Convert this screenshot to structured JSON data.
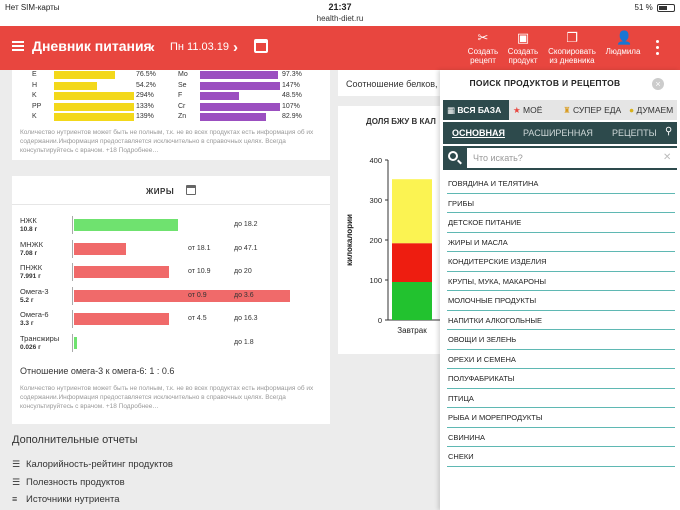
{
  "status": {
    "carrier": "Нет SIM-карты",
    "time": "21:37",
    "url": "health-diet.ru",
    "battery": "51 %"
  },
  "header": {
    "title": "Дневник питания",
    "date": "Пн 11.03.19",
    "actions": [
      {
        "label1": "Создать",
        "label2": "рецепт"
      },
      {
        "label1": "Создать",
        "label2": "продукт"
      },
      {
        "label1": "Скопировать",
        "label2": "из дневника"
      }
    ],
    "user": "Людмила"
  },
  "minerals_left": [
    {
      "name": "E",
      "value": "76.5%",
      "pct": 76.5
    },
    {
      "name": "H",
      "value": "54.2%",
      "pct": 54.2
    },
    {
      "name": "K",
      "value": "294%",
      "pct": 100
    },
    {
      "name": "PP",
      "value": "133%",
      "pct": 100
    },
    {
      "name": "K",
      "value": "139%",
      "pct": 100
    }
  ],
  "minerals_right": [
    {
      "name": "Mo",
      "value": "97.3%",
      "pct": 97.3
    },
    {
      "name": "Se",
      "value": "147%",
      "pct": 100
    },
    {
      "name": "F",
      "value": "48.5%",
      "pct": 48.5
    },
    {
      "name": "Cr",
      "value": "107%",
      "pct": 100
    },
    {
      "name": "Zn",
      "value": "82.9%",
      "pct": 82.9
    }
  ],
  "note_text": "Количество нутриентов может быть не полным, т.к. не во всех продуктах есть информация об их содержании.Информация предоставляется исключительно в справочных целях. Всегда консультируйтесь с врачом. +18 Подробнее…",
  "fats": {
    "title": "ЖИРЫ",
    "rows": [
      {
        "name": "НЖК",
        "value": "10.8 г",
        "from": "",
        "to": "до 18.2",
        "fill": 0.48,
        "color": "#6fe26f"
      },
      {
        "name": "МНЖК",
        "value": "7.08 г",
        "from": "от 18.1",
        "to": "до 47.1",
        "fill": 0.24,
        "color": "#f06a6a"
      },
      {
        "name": "ПНЖК",
        "value": "7.991 г",
        "from": "от 10.9",
        "to": "до 20",
        "fill": 0.44,
        "color": "#f06a6a"
      },
      {
        "name": "Омега-3",
        "value": "5.2 г",
        "from": "от 0.9",
        "to": "до 3.6",
        "fill": 1.0,
        "color": "#f06a6a"
      },
      {
        "name": "Омега-6",
        "value": "3.3 г",
        "from": "от 4.5",
        "to": "до 16.3",
        "fill": 0.44,
        "color": "#f06a6a"
      },
      {
        "name": "Трансжиры",
        "value": "0.026 г",
        "from": "",
        "to": "до 1.8",
        "fill": 0.015,
        "color": "#6fe26f"
      }
    ],
    "ratio": "Отношение омега-3 к омега-6: 1 : 0.6"
  },
  "extra": {
    "title": "Дополнительные отчеты",
    "links": [
      "Калорийность-рейтинг продуктов",
      "Полезность продуктов",
      "Источники нутриента"
    ]
  },
  "middle": {
    "ratio_header": "Соотношение белков,",
    "chart_header": "ДОЛЯ БЖУ В КАЛ"
  },
  "chart_data": {
    "type": "bar",
    "categories": [
      "Завтрак"
    ],
    "ylabel": "килокалории",
    "ylim": [
      0,
      400
    ],
    "yticks": [
      0,
      100,
      200,
      300,
      400
    ],
    "series": [
      {
        "name": "",
        "values": [
          95
        ],
        "color": "#22c22f"
      },
      {
        "name": "",
        "values": [
          97
        ],
        "color": "#ee1d10"
      },
      {
        "name": "",
        "values": [
          160
        ],
        "color": "#fbf352"
      }
    ]
  },
  "panel": {
    "title": "ПОИСК ПРОДУКТОВ И РЕЦЕПТОВ",
    "tabs": [
      "ВСЯ БАЗА",
      "МОЁ",
      "СУПЕР ЕДА",
      "ДУМАЕМ"
    ],
    "subtabs": [
      "ОСНОВНАЯ",
      "РАСШИРЕННАЯ",
      "РЕЦЕПТЫ"
    ],
    "search_placeholder": "Что искать?",
    "categories": [
      "ГОВЯДИНА И ТЕЛЯТИНА",
      "ГРИБЫ",
      "ДЕТСКОЕ ПИТАНИЕ",
      "ЖИРЫ И МАСЛА",
      "КОНДИТЕРСКИЕ ИЗДЕЛИЯ",
      "КРУПЫ, МУКА, МАКАРОНЫ",
      "МОЛОЧНЫЕ ПРОДУКТЫ",
      "НАПИТКИ АЛКОГОЛЬНЫЕ",
      "ОВОЩИ И ЗЕЛЕНЬ",
      "ОРЕХИ И СЕМЕНА",
      "ПОЛУФАБРИКАТЫ",
      "ПТИЦА",
      "РЫБА И МОРЕПРОДУКТЫ",
      "СВИНИНА",
      "СНЕКИ"
    ]
  }
}
